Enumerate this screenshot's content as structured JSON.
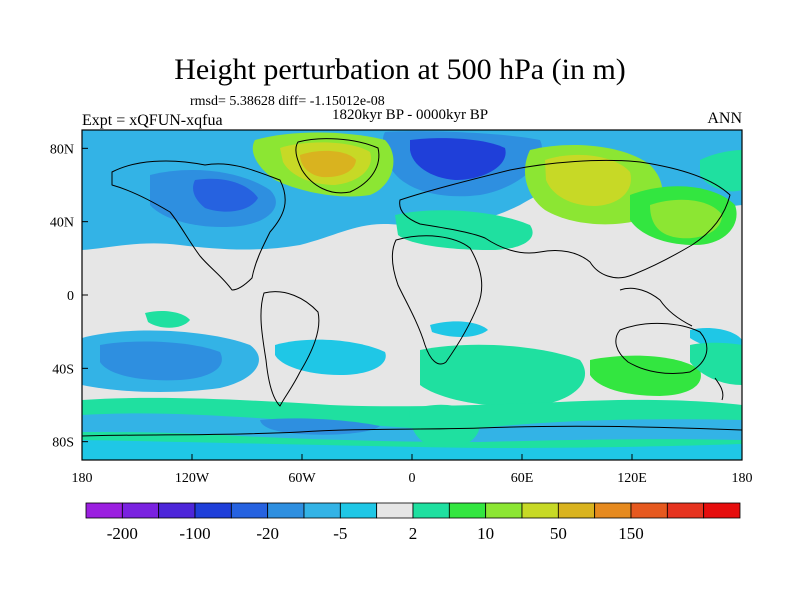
{
  "header": {
    "title": "Height perturbation at 500 hPa (in m)",
    "rmsd": "rmsd= 5.38628 diff= -1.15012e-08",
    "period": "1820kyr BP - 0000kyr BP",
    "expt": "Expt = xQFUN-xqfua",
    "season": "ANN"
  },
  "map": {
    "lon_range": [
      -180,
      180
    ],
    "lat_range": [
      -90,
      90
    ],
    "lon_ticks": [
      {
        "value": -180,
        "label": "180"
      },
      {
        "value": -120,
        "label": "120W"
      },
      {
        "value": -60,
        "label": "60W"
      },
      {
        "value": 0,
        "label": "0"
      },
      {
        "value": 60,
        "label": "60E"
      },
      {
        "value": 120,
        "label": "120E"
      },
      {
        "value": 180,
        "label": "180"
      }
    ],
    "lat_ticks": [
      {
        "value": 80,
        "label": "80N"
      },
      {
        "value": 40,
        "label": "40N"
      },
      {
        "value": 0,
        "label": "0"
      },
      {
        "value": -40,
        "label": "40S"
      },
      {
        "value": -80,
        "label": "80S"
      }
    ],
    "background_color": "#e6e6e6",
    "coastline_color": "#000000"
  },
  "colorbar": {
    "colors": [
      "#9b1fe0",
      "#7a22e0",
      "#4d26d9",
      "#1f3fd9",
      "#2662e0",
      "#2e8fe0",
      "#33b3e6",
      "#1fc7e6",
      "#e6e6e6",
      "#1fe0a0",
      "#33e640",
      "#8ce633",
      "#c7d926",
      "#d9b31f",
      "#e68a1f",
      "#e6591f",
      "#e6331f",
      "#e60d0d"
    ],
    "labels": [
      "-200",
      "-100",
      "-20",
      "-5",
      "2",
      "10",
      "50",
      "150"
    ]
  }
}
